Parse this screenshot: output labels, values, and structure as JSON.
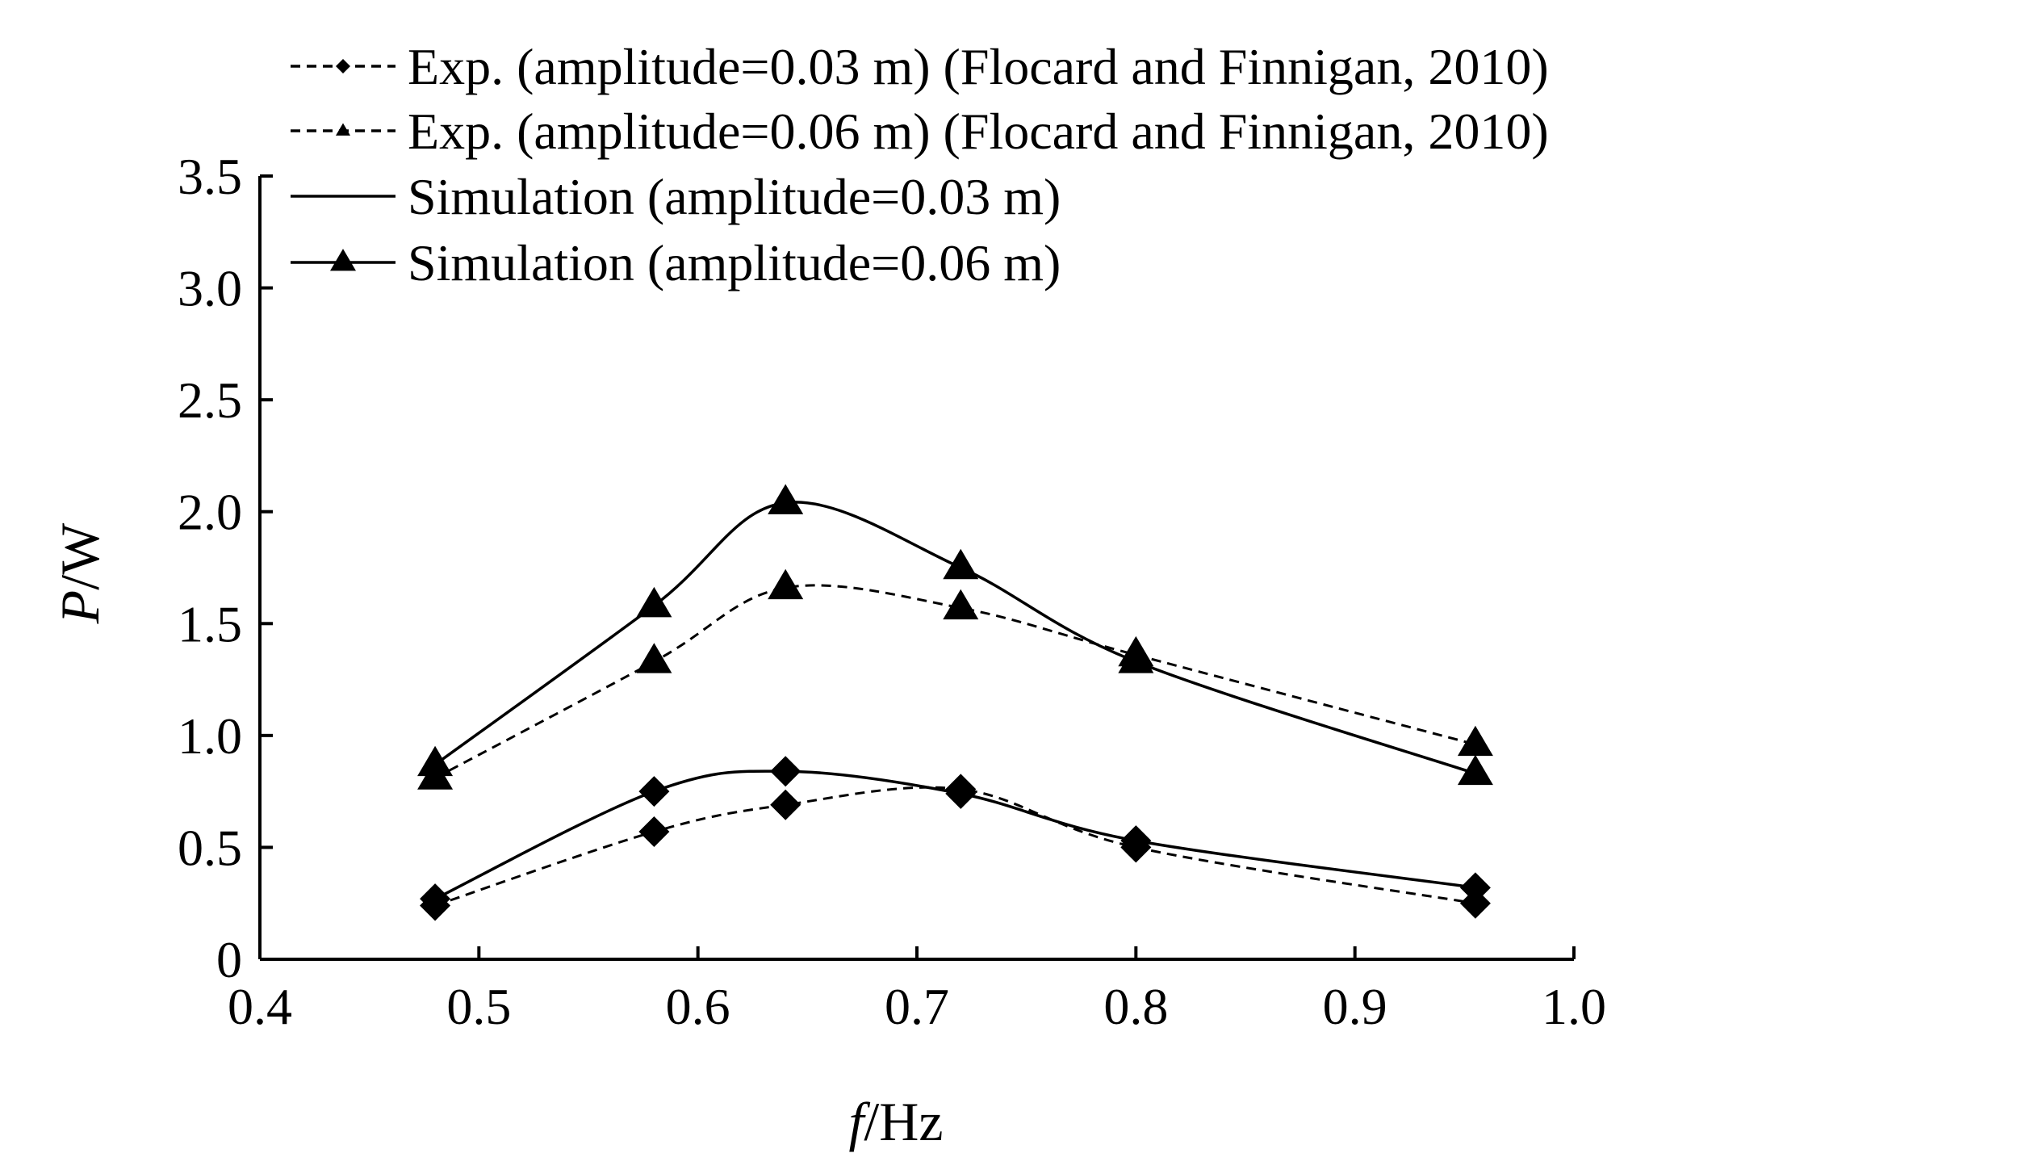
{
  "chart_data": {
    "type": "line",
    "xlabel": {
      "italic": "f",
      "rest": "/Hz"
    },
    "ylabel": {
      "italic": "P",
      "rest": "/W"
    },
    "xlim": [
      0.4,
      1.0
    ],
    "ylim": [
      0,
      3.5
    ],
    "xticks": [
      0.4,
      0.5,
      0.6,
      0.7,
      0.8,
      0.9,
      1.0
    ],
    "xtick_labels": [
      "0.4",
      "0.5",
      "0.6",
      "0.7",
      "0.8",
      "0.9",
      "1.0"
    ],
    "yticks": [
      0,
      0.5,
      1.0,
      1.5,
      2.0,
      2.5,
      3.0,
      3.5
    ],
    "ytick_labels": [
      "0",
      "0.5",
      "1.0",
      "1.5",
      "2.0",
      "2.5",
      "3.0",
      "3.5"
    ],
    "grid": false,
    "legend_position": "top",
    "series": [
      {
        "name": "Exp. (amplitude=0.03 m) (Flocard and Finnigan, 2010)",
        "line": "dashed",
        "marker": "diamond",
        "legend_marker": "small",
        "x": [
          0.48,
          0.58,
          0.64,
          0.72,
          0.8,
          0.955
        ],
        "y": [
          0.24,
          0.57,
          0.69,
          0.76,
          0.5,
          0.25
        ]
      },
      {
        "name": "Exp. (amplitude=0.06 m) (Flocard and Finnigan, 2010)",
        "line": "dashed",
        "marker": "triangle",
        "legend_marker": "small",
        "x": [
          0.48,
          0.58,
          0.64,
          0.72,
          0.8,
          0.955
        ],
        "y": [
          0.81,
          1.33,
          1.66,
          1.57,
          1.36,
          0.96
        ]
      },
      {
        "name": "Simulation (amplitude=0.03 m)",
        "line": "solid",
        "marker": "diamond",
        "legend_marker": "none",
        "x": [
          0.48,
          0.58,
          0.64,
          0.72,
          0.8,
          0.955
        ],
        "y": [
          0.27,
          0.75,
          0.84,
          0.74,
          0.53,
          0.32
        ]
      },
      {
        "name": "Simulation (amplitude=0.06 m)",
        "line": "solid",
        "marker": "triangle",
        "legend_marker": "large",
        "x": [
          0.48,
          0.58,
          0.64,
          0.72,
          0.8,
          0.955
        ],
        "y": [
          0.87,
          1.58,
          2.04,
          1.75,
          1.33,
          0.83
        ]
      }
    ]
  }
}
